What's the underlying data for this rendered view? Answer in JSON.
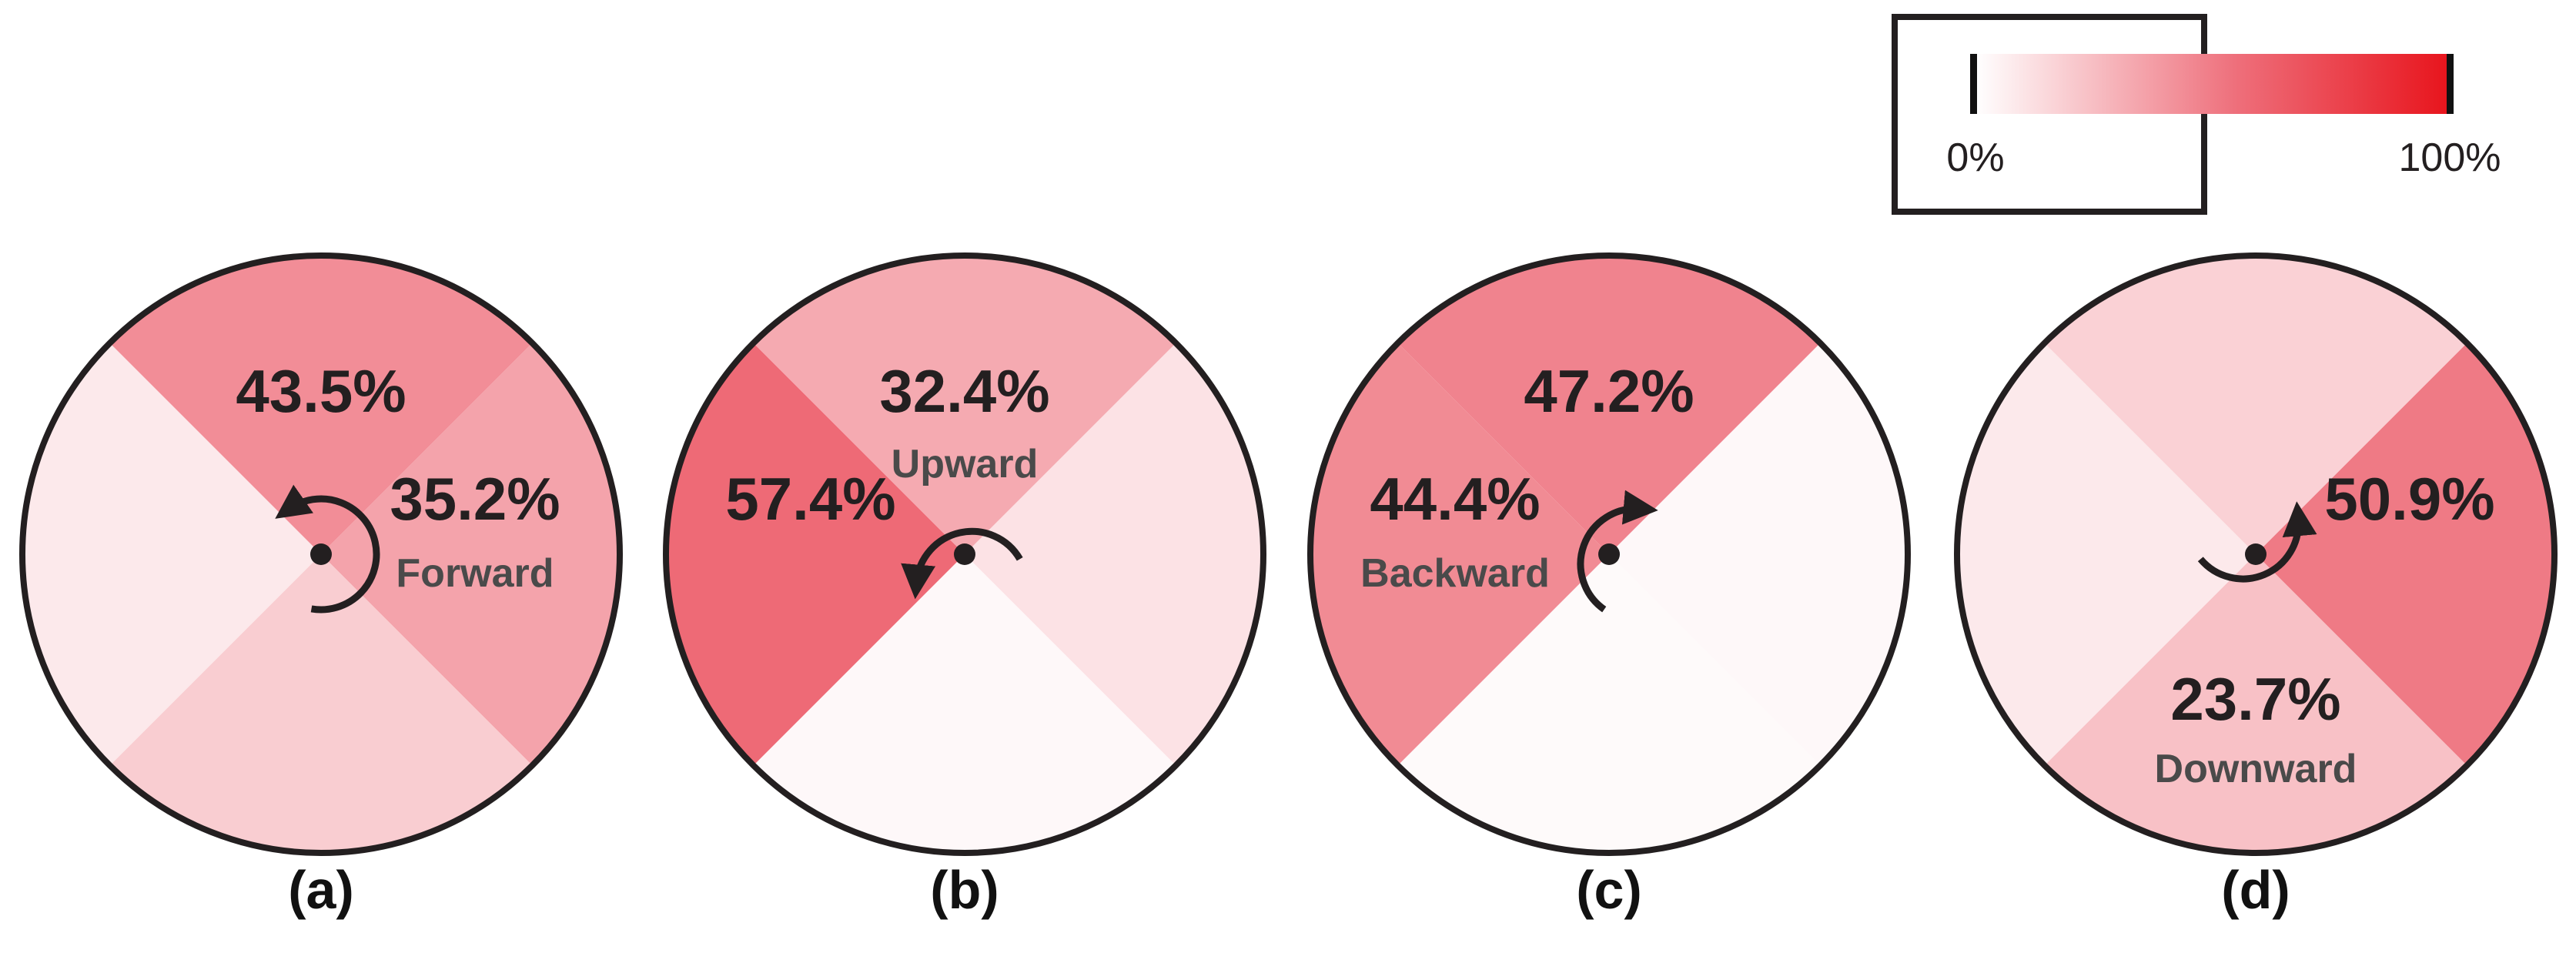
{
  "legend": {
    "min_label": "0%",
    "max_label": "100%",
    "color_low": "#ffffff",
    "color_high": "#e8141c"
  },
  "panels": [
    {
      "caption": "(a)",
      "rotation": "counterclockwise",
      "sectors": {
        "top": 43.5,
        "right": 35.2,
        "bottom": 19.0,
        "left": 8.5
      },
      "labels": [
        {
          "sector": "top",
          "value": "43.5%",
          "direction": ""
        },
        {
          "sector": "right",
          "value": "35.2%",
          "direction": "Forward"
        }
      ]
    },
    {
      "caption": "(b)",
      "rotation": "counterclockwise",
      "sectors": {
        "top": 32.4,
        "right": 11.0,
        "bottom": 2.5,
        "left": 57.4
      },
      "labels": [
        {
          "sector": "top",
          "value": "32.4%",
          "direction": "Upward"
        },
        {
          "sector": "left",
          "value": "57.4%",
          "direction": ""
        }
      ]
    },
    {
      "caption": "(c)",
      "rotation": "clockwise",
      "sectors": {
        "top": 47.2,
        "right": 2.5,
        "bottom": 2.0,
        "left": 44.4
      },
      "labels": [
        {
          "sector": "top",
          "value": "47.2%",
          "direction": ""
        },
        {
          "sector": "left",
          "value": "44.4%",
          "direction": "Backward"
        }
      ]
    },
    {
      "caption": "(d)",
      "rotation": "counterclockwise",
      "sectors": {
        "top": 17.5,
        "right": 50.9,
        "bottom": 23.7,
        "left": 8.5
      },
      "labels": [
        {
          "sector": "right",
          "value": "50.9%",
          "direction": ""
        },
        {
          "sector": "bottom",
          "value": "23.7%",
          "direction": "Downward"
        }
      ]
    }
  ]
}
